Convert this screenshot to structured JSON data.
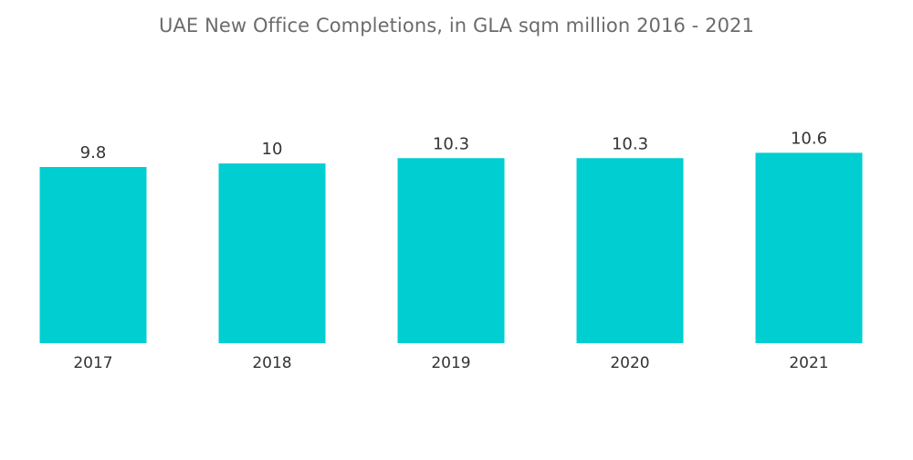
{
  "chart_data": {
    "type": "bar",
    "title": "UAE New Office Completions, in GLA sqm million 2016 - 2021",
    "categories": [
      "2017",
      "2018",
      "2019",
      "2020",
      "2021"
    ],
    "values": [
      9.8,
      10,
      10.3,
      10.3,
      10.6
    ],
    "value_labels": [
      "9.8",
      "10",
      "10.3",
      "10.3",
      "10.6"
    ],
    "xlabel": "",
    "ylabel": "",
    "grid": false,
    "legend": "none",
    "bar_color": "#00CED1"
  }
}
